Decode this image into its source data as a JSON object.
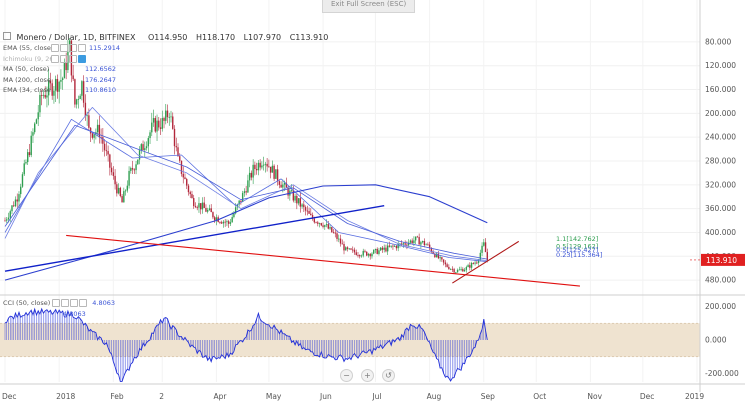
{
  "window": {
    "exit_fullscreen": "Exit Full Screen (ESC)"
  },
  "header": {
    "symbol": "Monero / Dollar, 1D, BITFINEX",
    "open": "O114.950",
    "high": "H118.170",
    "low": "L107.970",
    "close": "C113.910"
  },
  "legend": [
    {
      "name": "EMA (55, close)",
      "value": "115.2914",
      "color": "#3c55d6"
    },
    {
      "name": "Ichimoku (9, 26, 52, 26)",
      "value": "",
      "color": "#aaaaaa"
    },
    {
      "name": "MA (50, close)",
      "value": "112.6562",
      "color": "#3c55d6"
    },
    {
      "name": "MA (200, close)",
      "value": "176.2647",
      "color": "#3c55d6"
    },
    {
      "name": "EMA (34, close)",
      "value": "110.8610",
      "color": "#3c55d6"
    }
  ],
  "lower_legend": [
    {
      "name": "CCI (50, close)",
      "value": "4.8063"
    },
    {
      "name": "",
      "value": "4.8063"
    }
  ],
  "price_axis": [
    "480.000",
    "440.000",
    "400.000",
    "360.000",
    "320.000",
    "280.000",
    "240.000",
    "200.000",
    "160.000",
    "120.000",
    "80.000"
  ],
  "last_price": "113.910",
  "cci_axis": [
    "200.000",
    "0.000",
    "-200.000"
  ],
  "fib_labels": [
    "1.1[142.762]",
    "0.5[129.162]",
    "0.5[125.427]",
    "0.23[115.364]"
  ],
  "time_axis": [
    "Dec",
    "2018",
    "Feb",
    "2",
    "Apr",
    "May",
    "Jun",
    "Jul",
    "Aug",
    "Sep",
    "Oct",
    "Nov",
    "Dec",
    "2019"
  ],
  "colors": {
    "up": "#2e9e4f",
    "down": "#b2263a",
    "ma": "#3c55d6",
    "trend_blue": "#1021c9",
    "trend_red": "#e01010",
    "cci": "#2230d8",
    "cci_band": "#efe3d0",
    "last_price_badge": "#e02020"
  },
  "chart_data": {
    "type": "candlestick",
    "symbol": "Monero / Dollar, 1D, BITFINEX",
    "y_range": [
      60,
      500
    ],
    "y_ticks": [
      80,
      120,
      160,
      200,
      240,
      280,
      320,
      360,
      400,
      440,
      480
    ],
    "x_range": [
      "2017-12-01",
      "2019-01-01"
    ],
    "last_close": 113.91,
    "close_path": [
      [
        "2017-12-01",
        180
      ],
      [
        "2017-12-08",
        220
      ],
      [
        "2017-12-15",
        300
      ],
      [
        "2017-12-22",
        390
      ],
      [
        "2017-12-28",
        405
      ],
      [
        "2018-01-03",
        420
      ],
      [
        "2018-01-07",
        470
      ],
      [
        "2018-01-10",
        375
      ],
      [
        "2018-01-14",
        410
      ],
      [
        "2018-01-18",
        330
      ],
      [
        "2018-01-24",
        330
      ],
      [
        "2018-02-01",
        250
      ],
      [
        "2018-02-06",
        210
      ],
      [
        "2018-02-10",
        255
      ],
      [
        "2018-02-18",
        305
      ],
      [
        "2018-02-24",
        340
      ],
      [
        "2018-03-02",
        345
      ],
      [
        "2018-03-05",
        365
      ],
      [
        "2018-03-10",
        280
      ],
      [
        "2018-03-18",
        215
      ],
      [
        "2018-03-25",
        200
      ],
      [
        "2018-04-01",
        185
      ],
      [
        "2018-04-08",
        175
      ],
      [
        "2018-04-15",
        215
      ],
      [
        "2018-04-22",
        265
      ],
      [
        "2018-04-28",
        285
      ],
      [
        "2018-05-04",
        260
      ],
      [
        "2018-05-10",
        235
      ],
      [
        "2018-05-18",
        210
      ],
      [
        "2018-05-25",
        185
      ],
      [
        "2018-06-01",
        175
      ],
      [
        "2018-06-08",
        155
      ],
      [
        "2018-06-14",
        130
      ],
      [
        "2018-06-22",
        125
      ],
      [
        "2018-06-28",
        125
      ],
      [
        "2018-07-04",
        130
      ],
      [
        "2018-07-10",
        135
      ],
      [
        "2018-07-16",
        140
      ],
      [
        "2018-07-24",
        148
      ],
      [
        "2018-07-30",
        140
      ],
      [
        "2018-08-05",
        120
      ],
      [
        "2018-08-10",
        105
      ],
      [
        "2018-08-16",
        95
      ],
      [
        "2018-08-22",
        100
      ],
      [
        "2018-08-28",
        112
      ],
      [
        "2018-09-01",
        140
      ],
      [
        "2018-09-03",
        113.91
      ]
    ],
    "ma200": [
      [
        "2017-12-01",
        80
      ],
      [
        "2018-02-01",
        130
      ],
      [
        "2018-04-01",
        180
      ],
      [
        "2018-05-01",
        218
      ],
      [
        "2018-06-01",
        238
      ],
      [
        "2018-07-01",
        240
      ],
      [
        "2018-08-01",
        220
      ],
      [
        "2018-09-03",
        176.26
      ]
    ],
    "ma50": [
      [
        "2017-12-01",
        150
      ],
      [
        "2017-12-20",
        260
      ],
      [
        "2018-01-20",
        370
      ],
      [
        "2018-02-15",
        290
      ],
      [
        "2018-03-15",
        260
      ],
      [
        "2018-04-15",
        200
      ],
      [
        "2018-05-15",
        240
      ],
      [
        "2018-06-15",
        180
      ],
      [
        "2018-07-15",
        140
      ],
      [
        "2018-08-15",
        120
      ],
      [
        "2018-09-03",
        112.66
      ]
    ],
    "ema55": [
      [
        "2017-12-01",
        170
      ],
      [
        "2018-01-10",
        340
      ],
      [
        "2018-02-15",
        300
      ],
      [
        "2018-03-15",
        270
      ],
      [
        "2018-04-15",
        215
      ],
      [
        "2018-05-15",
        235
      ],
      [
        "2018-06-15",
        175
      ],
      [
        "2018-07-15",
        145
      ],
      [
        "2018-08-15",
        125
      ],
      [
        "2018-09-03",
        115.29
      ]
    ],
    "ema34": [
      [
        "2017-12-01",
        160
      ],
      [
        "2018-01-08",
        350
      ],
      [
        "2018-02-12",
        285
      ],
      [
        "2018-03-12",
        290
      ],
      [
        "2018-04-12",
        205
      ],
      [
        "2018-05-08",
        250
      ],
      [
        "2018-06-10",
        160
      ],
      [
        "2018-07-12",
        140
      ],
      [
        "2018-08-12",
        118
      ],
      [
        "2018-09-03",
        110.86
      ]
    ],
    "trend_blue": [
      [
        "2017-12-01",
        95
      ],
      [
        "2018-07-06",
        205
      ]
    ],
    "trend_red": [
      [
        "2018-01-05",
        155
      ],
      [
        "2018-10-26",
        70
      ]
    ],
    "trend_red_rising": [
      [
        "2018-08-14",
        75
      ],
      [
        "2018-09-21",
        145
      ]
    ],
    "cci": {
      "range": [
        -250,
        250
      ],
      "ticks": [
        200,
        0,
        -200
      ],
      "band": [
        -100,
        100
      ],
      "last": 4.8063,
      "path": [
        [
          "2017-12-01",
          120
        ],
        [
          "2017-12-15",
          170
        ],
        [
          "2018-01-01",
          160
        ],
        [
          "2018-01-10",
          150
        ],
        [
          "2018-01-20",
          40
        ],
        [
          "2018-01-28",
          -20
        ],
        [
          "2018-02-03",
          -180
        ],
        [
          "2018-02-06",
          -250
        ],
        [
          "2018-02-12",
          -120
        ],
        [
          "2018-02-22",
          20
        ],
        [
          "2018-03-02",
          130
        ],
        [
          "2018-03-08",
          60
        ],
        [
          "2018-03-18",
          -40
        ],
        [
          "2018-03-28",
          -120
        ],
        [
          "2018-04-08",
          -90
        ],
        [
          "2018-04-18",
          30
        ],
        [
          "2018-04-25",
          140
        ],
        [
          "2018-05-02",
          90
        ],
        [
          "2018-05-12",
          10
        ],
        [
          "2018-05-22",
          -60
        ],
        [
          "2018-06-05",
          -100
        ],
        [
          "2018-06-15",
          -110
        ],
        [
          "2018-06-25",
          -80
        ],
        [
          "2018-07-05",
          -40
        ],
        [
          "2018-07-15",
          10
        ],
        [
          "2018-07-22",
          100
        ],
        [
          "2018-07-28",
          60
        ],
        [
          "2018-08-05",
          -120
        ],
        [
          "2018-08-12",
          -240
        ],
        [
          "2018-08-20",
          -150
        ],
        [
          "2018-08-28",
          -20
        ],
        [
          "2018-09-01",
          110
        ],
        [
          "2018-09-03",
          4.81
        ]
      ]
    }
  }
}
